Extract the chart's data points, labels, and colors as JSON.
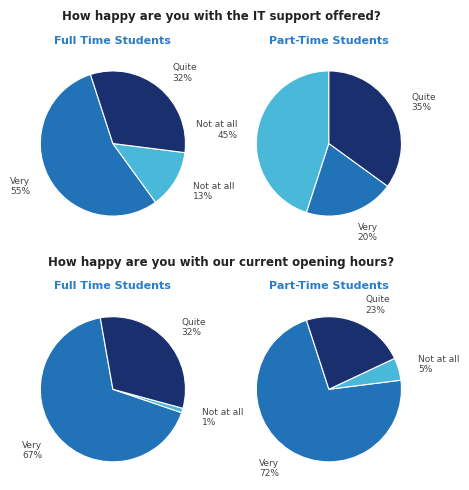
{
  "title1": "How happy are you with the IT support offered?",
  "title2": "How happy are you with our current opening hours?",
  "label_full": "Full Time Students",
  "label_part": "Part-Time Students",
  "it_full": {
    "values": [
      55,
      13,
      32
    ],
    "labels": [
      "Very\n55%",
      "Not at all\n13%",
      "Quite\n32%"
    ],
    "colors": [
      "#2272b8",
      "#4ab8d8",
      "#1a2f6e"
    ],
    "startangle": 108
  },
  "it_part": {
    "values": [
      45,
      20,
      35
    ],
    "labels": [
      "Not at all\n45%",
      "Very\n20%",
      "Quite\n35%"
    ],
    "colors": [
      "#4ab8d8",
      "#2272b8",
      "#1a2f6e"
    ],
    "startangle": 90
  },
  "hours_full": {
    "values": [
      67,
      1,
      32
    ],
    "labels": [
      "Very\n67%",
      "Not at all\n1%",
      "Quite\n32%"
    ],
    "colors": [
      "#2272b8",
      "#4ab8d8",
      "#1a2f6e"
    ],
    "startangle": 100
  },
  "hours_part": {
    "values": [
      72,
      5,
      23
    ],
    "labels": [
      "Very\n72%",
      "Not at all\n5%",
      "Quite\n23%"
    ],
    "colors": [
      "#2272b8",
      "#4ab8d8",
      "#1a2f6e"
    ],
    "startangle": 108
  },
  "title_color": "#222222",
  "subtitle_color": "#2a7dc9",
  "label_color": "#444444",
  "background_color": "#ffffff",
  "title_fs": 8.5,
  "subtitle_fs": 8.0,
  "label_fs": 6.5
}
